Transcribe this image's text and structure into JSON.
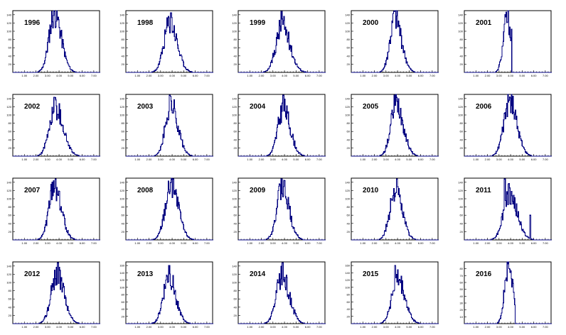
{
  "chart_data": [
    {
      "type": "bar",
      "title": "1996",
      "xticks": [
        "1.00",
        "2.00",
        "3.00",
        "4.00",
        "5.00",
        "6.00",
        "7.00"
      ],
      "yticks": [
        "20",
        "40",
        "60",
        "80",
        "100",
        "120",
        "140"
      ],
      "xlim": [
        0,
        7.5
      ],
      "ylim": [
        0,
        150
      ],
      "peak_center": 3.6,
      "peak_height": 143,
      "spread": 0.85,
      "seed": 11
    },
    {
      "type": "bar",
      "title": "1998",
      "xticks": [
        "1.00",
        "2.00",
        "3.00",
        "4.00",
        "5.00",
        "6.00",
        "7.00"
      ],
      "yticks": [
        "20",
        "40",
        "60",
        "80",
        "100",
        "120",
        "140"
      ],
      "xlim": [
        0,
        7.5
      ],
      "ylim": [
        0,
        150
      ],
      "peak_center": 3.8,
      "peak_height": 120,
      "spread": 0.9,
      "spike_x": 3.9,
      "spike_h": 145,
      "seed": 23
    },
    {
      "type": "bar",
      "title": "1999",
      "xticks": [
        "1.00",
        "2.00",
        "3.00",
        "4.00",
        "5.00",
        "6.00",
        "7.00"
      ],
      "yticks": [
        "20",
        "40",
        "60",
        "80",
        "100",
        "120",
        "140"
      ],
      "xlim": [
        0,
        7.5
      ],
      "ylim": [
        0,
        150
      ],
      "peak_center": 3.8,
      "peak_height": 115,
      "spread": 0.95,
      "spike_x": 3.75,
      "spike_h": 148,
      "seed": 37
    },
    {
      "type": "bar",
      "title": "2000",
      "xticks": [
        "1.00",
        "2.00",
        "3.00",
        "4.00",
        "5.00",
        "6.00",
        "7.00"
      ],
      "yticks": [
        "20",
        "40",
        "60",
        "80",
        "100",
        "120",
        "140"
      ],
      "xlim": [
        0,
        7.5
      ],
      "ylim": [
        0,
        150
      ],
      "peak_center": 3.8,
      "peak_height": 130,
      "spread": 0.8,
      "spike_x": 3.7,
      "spike_h": 148,
      "seed": 41
    },
    {
      "type": "bar",
      "title": "2001",
      "xticks": [
        "1.00",
        "2.00",
        "3.00",
        "4.00",
        "5.00",
        "6.00",
        "7.00"
      ],
      "yticks": [
        "20",
        "40",
        "60",
        "80",
        "100",
        "120",
        "140"
      ],
      "xlim": [
        0,
        7.5
      ],
      "ylim": [
        0,
        150
      ],
      "peak_center": 3.7,
      "peak_height": 130,
      "spread": 0.6,
      "cutoff": 4.1,
      "seed": 53
    },
    {
      "type": "bar",
      "title": "2002",
      "xticks": [
        "1.00",
        "2.00",
        "3.00",
        "4.00",
        "5.00",
        "6.00",
        "7.00"
      ],
      "yticks": [
        "20",
        "40",
        "60",
        "80",
        "100",
        "120",
        "140"
      ],
      "xlim": [
        0,
        7.5
      ],
      "ylim": [
        0,
        150
      ],
      "peak_center": 3.7,
      "peak_height": 118,
      "spread": 0.95,
      "spike_x": 3.6,
      "spike_h": 143,
      "seed": 61
    },
    {
      "type": "bar",
      "title": "2003",
      "xticks": [
        "1.00",
        "2.00",
        "3.00",
        "4.00",
        "5.00",
        "6.00",
        "7.00"
      ],
      "yticks": [
        "20",
        "40",
        "60",
        "80",
        "100",
        "120",
        "140"
      ],
      "xlim": [
        0,
        7.5
      ],
      "ylim": [
        0,
        150
      ],
      "peak_center": 3.9,
      "peak_height": 125,
      "spread": 0.85,
      "spike_x": 3.8,
      "spike_h": 148,
      "seed": 71
    },
    {
      "type": "bar",
      "title": "2004",
      "xticks": [
        "1.00",
        "2.00",
        "3.00",
        "4.00",
        "5.00",
        "6.00",
        "7.00"
      ],
      "yticks": [
        "20",
        "40",
        "60",
        "80",
        "100",
        "120",
        "140"
      ],
      "xlim": [
        0,
        7.5
      ],
      "ylim": [
        0,
        150
      ],
      "peak_center": 3.9,
      "peak_height": 115,
      "spread": 0.85,
      "spike_x": 3.9,
      "spike_h": 148,
      "seed": 83
    },
    {
      "type": "bar",
      "title": "2005",
      "xticks": [
        "1.00",
        "2.00",
        "3.00",
        "4.00",
        "5.00",
        "6.00",
        "7.00"
      ],
      "yticks": [
        "20",
        "40",
        "60",
        "80",
        "100",
        "120",
        "140"
      ],
      "xlim": [
        0,
        7.5
      ],
      "ylim": [
        0,
        150
      ],
      "peak_center": 3.9,
      "peak_height": 130,
      "spread": 0.85,
      "spike_x": 3.75,
      "spike_h": 148,
      "seed": 97
    },
    {
      "type": "bar",
      "title": "2006",
      "xticks": [
        "1.00",
        "2.00",
        "3.00",
        "4.00",
        "5.00",
        "6.00",
        "7.00"
      ],
      "yticks": [
        "20",
        "40",
        "60",
        "80",
        "100",
        "120",
        "140"
      ],
      "xlim": [
        0,
        7.5
      ],
      "ylim": [
        0,
        150
      ],
      "peak_center": 3.9,
      "peak_height": 135,
      "spread": 0.9,
      "seed": 101
    },
    {
      "type": "bar",
      "title": "2007",
      "xticks": [
        "1.00",
        "2.00",
        "3.00",
        "4.00",
        "5.00",
        "6.00",
        "7.00"
      ],
      "yticks": [
        "20",
        "40",
        "60",
        "80",
        "100",
        "120",
        "140"
      ],
      "xlim": [
        0,
        7.5
      ],
      "ylim": [
        0,
        150
      ],
      "peak_center": 3.6,
      "peak_height": 130,
      "spread": 0.85,
      "spike_x": 3.7,
      "spike_h": 148,
      "seed": 113
    },
    {
      "type": "bar",
      "title": "2008",
      "xticks": [
        "1.00",
        "2.00",
        "3.00",
        "4.00",
        "5.00",
        "6.00",
        "7.00"
      ],
      "yticks": [
        "20",
        "40",
        "60",
        "80",
        "100",
        "120",
        "140"
      ],
      "xlim": [
        0,
        7.5
      ],
      "ylim": [
        0,
        150
      ],
      "peak_center": 3.9,
      "peak_height": 135,
      "spread": 0.9,
      "spike_x": 4.1,
      "spike_h": 148,
      "seed": 127
    },
    {
      "type": "bar",
      "title": "2009",
      "xticks": [
        "1.00",
        "2.00",
        "3.00",
        "4.00",
        "5.00",
        "6.00",
        "7.00"
      ],
      "yticks": [
        "20",
        "40",
        "60",
        "80",
        "100",
        "120",
        "140"
      ],
      "xlim": [
        0,
        7.5
      ],
      "ylim": [
        0,
        150
      ],
      "peak_center": 3.8,
      "peak_height": 125,
      "spread": 0.85,
      "spike_x": 3.75,
      "spike_h": 148,
      "seed": 131
    },
    {
      "type": "bar",
      "title": "2010",
      "xticks": [
        "1.00",
        "2.00",
        "3.00",
        "4.00",
        "5.00",
        "6.00",
        "7.00"
      ],
      "yticks": [
        "20",
        "40",
        "60",
        "80",
        "100",
        "120",
        "140"
      ],
      "xlim": [
        0,
        7.5
      ],
      "ylim": [
        0,
        150
      ],
      "peak_center": 3.8,
      "peak_height": 120,
      "spread": 0.85,
      "spike_x": 3.95,
      "spike_h": 148,
      "seed": 139
    },
    {
      "type": "bar",
      "title": "2011",
      "xticks": [
        "1.00",
        "2.00",
        "3.00",
        "4.00",
        "5.00",
        "6.00",
        "7.00"
      ],
      "yticks": [
        "20",
        "40",
        "60",
        "80",
        "100",
        "120",
        "140"
      ],
      "xlim": [
        0,
        7.5
      ],
      "ylim": [
        0,
        150
      ],
      "peak_center": 3.9,
      "peak_height": 110,
      "spread": 0.95,
      "spike_x": 3.5,
      "spike_h": 148,
      "spike2_x": 5.7,
      "spike2_h": 60,
      "seed": 149
    },
    {
      "type": "bar",
      "title": "2012",
      "xticks": [
        "1.00",
        "2.00",
        "3.00",
        "4.00",
        "5.00",
        "6.00",
        "7.00"
      ],
      "yticks": [
        "20",
        "40",
        "60",
        "80",
        "100",
        "120",
        "140"
      ],
      "xlim": [
        0,
        7.5
      ],
      "ylim": [
        0,
        150
      ],
      "peak_center": 3.8,
      "peak_height": 120,
      "spread": 0.9,
      "spike_x": 3.9,
      "spike_h": 148,
      "seed": 157
    },
    {
      "type": "bar",
      "title": "2013",
      "xticks": [
        "1.00",
        "2.00",
        "3.00",
        "4.00",
        "5.00",
        "6.00",
        "7.00"
      ],
      "yticks": [
        "20",
        "40",
        "60",
        "80",
        "100",
        "120",
        "140",
        "160"
      ],
      "xlim": [
        0,
        7.5
      ],
      "ylim": [
        0,
        170
      ],
      "peak_center": 3.7,
      "peak_height": 130,
      "spread": 0.85,
      "spike_x": 3.75,
      "spike_h": 160,
      "seed": 163
    },
    {
      "type": "bar",
      "title": "2014",
      "xticks": [
        "1.00",
        "2.00",
        "3.00",
        "4.00",
        "5.00",
        "6.00",
        "7.00"
      ],
      "yticks": [
        "20",
        "40",
        "60",
        "80",
        "100",
        "120",
        "140"
      ],
      "xlim": [
        0,
        7.5
      ],
      "ylim": [
        0,
        150
      ],
      "peak_center": 3.8,
      "peak_height": 115,
      "spread": 0.9,
      "spike_x": 3.85,
      "spike_h": 148,
      "seed": 173
    },
    {
      "type": "bar",
      "title": "2015",
      "xticks": [
        "1.00",
        "2.00",
        "3.00",
        "4.00",
        "5.00",
        "6.00",
        "7.00"
      ],
      "yticks": [
        "20",
        "40",
        "60",
        "80",
        "100",
        "120",
        "140",
        "160"
      ],
      "xlim": [
        0,
        7.5
      ],
      "ylim": [
        0,
        170
      ],
      "peak_center": 4.0,
      "peak_height": 120,
      "spread": 0.9,
      "spike_x": 3.8,
      "spike_h": 160,
      "seed": 179
    },
    {
      "type": "bar",
      "title": "2016",
      "xticks": [
        "1.00",
        "2.00",
        "3.00",
        "4.00",
        "5.00",
        "6.00",
        "7.00"
      ],
      "yticks": [
        "10",
        "20",
        "30",
        "40",
        "50",
        "60",
        "70",
        "80"
      ],
      "xlim": [
        0,
        7.5
      ],
      "ylim": [
        0,
        90
      ],
      "peak_center": 3.8,
      "peak_height": 80,
      "spread": 0.6,
      "cutoff": 4.4,
      "seed": 191
    }
  ]
}
